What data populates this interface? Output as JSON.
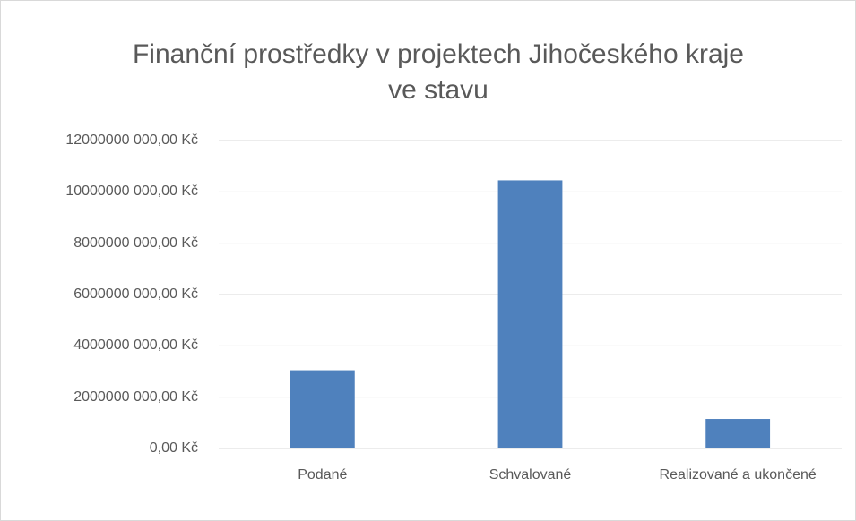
{
  "chart_data": {
    "type": "bar",
    "title": "Finanční prostředky v projektech Jihočeského kraje ve stavu",
    "categories": [
      "Podané",
      "Schvalované",
      "Realizované a ukončené"
    ],
    "values": [
      3050000000,
      10450000000,
      1150000000
    ],
    "color": "#4f81bd",
    "ylim": [
      0,
      12000000000
    ],
    "yticks": [
      {
        "value": 0,
        "label": "0,00 Kč"
      },
      {
        "value": 2000000000,
        "label": "2000000 000,00 Kč"
      },
      {
        "value": 4000000000,
        "label": "4000000 000,00 Kč"
      },
      {
        "value": 6000000000,
        "label": "6000000 000,00 Kč"
      },
      {
        "value": 8000000000,
        "label": "8000000 000,00 Kč"
      },
      {
        "value": 10000000000,
        "label": "10000000 000,00 Kč"
      },
      {
        "value": 12000000000,
        "label": "12000000 000,00 Kč"
      }
    ],
    "grid": true
  }
}
